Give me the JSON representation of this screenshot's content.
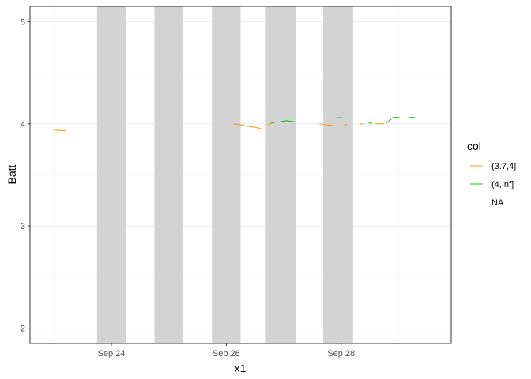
{
  "chart_data": {
    "type": "line",
    "xlabel": "x1",
    "ylabel": "Batt",
    "xlim": [
      "2023-09-22T14:00",
      "2023-09-29T22:00"
    ],
    "ylim": [
      1.85,
      5.15
    ],
    "x_ticks": [
      "2023-09-24",
      "2023-09-26",
      "2023-09-28"
    ],
    "x_tick_labels": [
      "Sep 24",
      "Sep 26",
      "Sep 28"
    ],
    "y_ticks": [
      2,
      3,
      4,
      5
    ],
    "y_tick_labels": [
      "2",
      "3",
      "4",
      "5"
    ],
    "grid": true,
    "shaded_bands": [
      {
        "start": "2023-09-23T18:00",
        "end": "2023-09-24T06:00"
      },
      {
        "start": "2023-09-24T18:00",
        "end": "2023-09-25T06:00"
      },
      {
        "start": "2023-09-25T18:00",
        "end": "2023-09-26T06:00"
      },
      {
        "start": "2023-09-26T16:30",
        "end": "2023-09-27T05:00"
      },
      {
        "start": "2023-09-27T16:30",
        "end": "2023-09-28T05:00"
      }
    ],
    "band_color": "#d3d3d3",
    "legend": {
      "title": "col",
      "position": "right",
      "entries": [
        {
          "label": "(3.7,4]",
          "color": "#ff9900"
        },
        {
          "label": "(4,Inf]",
          "color": "#00cc00"
        },
        {
          "label": "NA",
          "color": null
        }
      ]
    },
    "series": [
      {
        "legend_label": "(3.7,4]",
        "color": "#ff9900",
        "segments": [
          [
            [
              "2023-09-23T00:00",
              3.94
            ],
            [
              "2023-09-23T03:00",
              3.935
            ],
            [
              "2023-09-23T05:00",
              3.93
            ]
          ],
          [
            [
              "2023-09-26T03:00",
              4.0
            ],
            [
              "2023-09-26T06:00",
              3.99
            ],
            [
              "2023-09-26T09:00",
              3.975
            ],
            [
              "2023-09-26T12:00",
              3.965
            ],
            [
              "2023-09-26T14:30",
              3.955
            ]
          ],
          [
            [
              "2023-09-26T17:00",
              3.99
            ],
            [
              "2023-09-26T18:30",
              4.0
            ]
          ],
          [
            [
              "2023-09-27T15:00",
              4.0
            ],
            [
              "2023-09-27T18:00",
              3.99
            ],
            [
              "2023-09-27T20:00",
              3.985
            ],
            [
              "2023-09-27T22:00",
              3.975
            ]
          ],
          [
            [
              "2023-09-28T01:00",
              3.98
            ],
            [
              "2023-09-28T02:30",
              3.995
            ]
          ],
          [
            [
              "2023-09-28T08:00",
              4.0
            ],
            [
              "2023-09-28T09:30",
              4.0
            ]
          ],
          [
            [
              "2023-09-28T14:00",
              4.0
            ],
            [
              "2023-09-28T16:00",
              4.0
            ],
            [
              "2023-09-28T18:00",
              4.0
            ]
          ]
        ]
      },
      {
        "legend_label": "(4,Inf]",
        "color": "#00cc00",
        "segments": [
          [
            [
              "2023-09-26T18:30",
              4.005
            ],
            [
              "2023-09-26T20:00",
              4.015
            ],
            [
              "2023-09-26T21:00",
              4.02
            ]
          ],
          [
            [
              "2023-09-26T22:30",
              4.02
            ],
            [
              "2023-09-27T01:00",
              4.03
            ],
            [
              "2023-09-27T03:00",
              4.025
            ],
            [
              "2023-09-27T04:30",
              4.02
            ]
          ],
          [
            [
              "2023-09-27T22:00",
              4.06
            ],
            [
              "2023-09-28T00:00",
              4.06
            ],
            [
              "2023-09-28T01:30",
              4.055
            ]
          ],
          [
            [
              "2023-09-28T11:30",
              4.01
            ],
            [
              "2023-09-28T13:00",
              4.005
            ]
          ],
          [
            [
              "2023-09-28T19:00",
              4.01
            ],
            [
              "2023-09-28T20:00",
              4.03
            ],
            [
              "2023-09-28T21:00",
              4.045
            ]
          ],
          [
            [
              "2023-09-28T21:30",
              4.06
            ],
            [
              "2023-09-28T23:00",
              4.065
            ],
            [
              "2023-09-29T00:30",
              4.06
            ]
          ],
          [
            [
              "2023-09-29T04:00",
              4.06
            ],
            [
              "2023-09-29T06:00",
              4.065
            ],
            [
              "2023-09-29T07:30",
              4.055
            ]
          ]
        ]
      }
    ]
  }
}
